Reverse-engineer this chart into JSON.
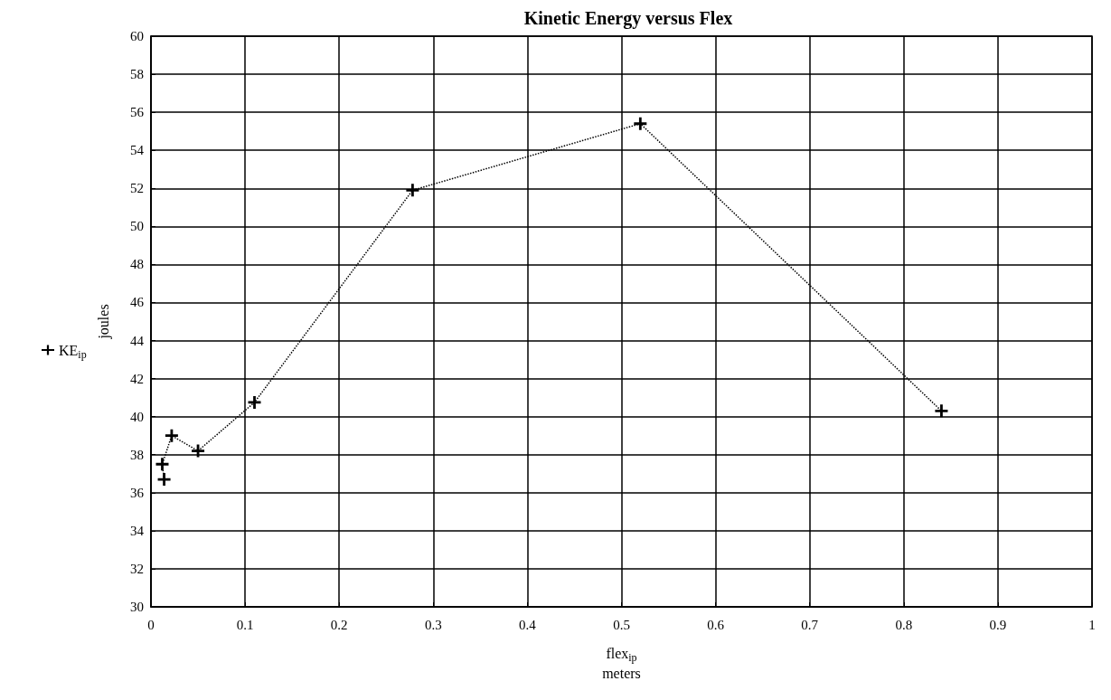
{
  "chart_data": {
    "type": "line",
    "title": "Kinetic Energy versus Flex",
    "xlabel": "flex$_{ip}$\nmeters",
    "ylabel": "joules",
    "series": [
      {
        "name": "KE$_{ip}$",
        "color": "#000000",
        "x": [
          0.014,
          0.012,
          0.022,
          0.05,
          0.11,
          0.278,
          0.52,
          0.84
        ],
        "values": [
          36.7,
          37.5,
          39.0,
          38.2,
          40.75,
          51.9,
          55.4,
          40.3
        ]
      }
    ],
    "xlim": [
      0,
      1
    ],
    "xticks": [
      0,
      0.1,
      0.2,
      0.3,
      0.4,
      0.5,
      0.6,
      0.7,
      0.8,
      0.9,
      1
    ],
    "ylim": [
      30,
      60
    ],
    "yticks": [
      30,
      32,
      34,
      36,
      38,
      40,
      42,
      44,
      46,
      48,
      50,
      52,
      54,
      56,
      58,
      60
    ],
    "grid": true,
    "legend": "left",
    "marker": "cross",
    "line_style": "dotted"
  }
}
